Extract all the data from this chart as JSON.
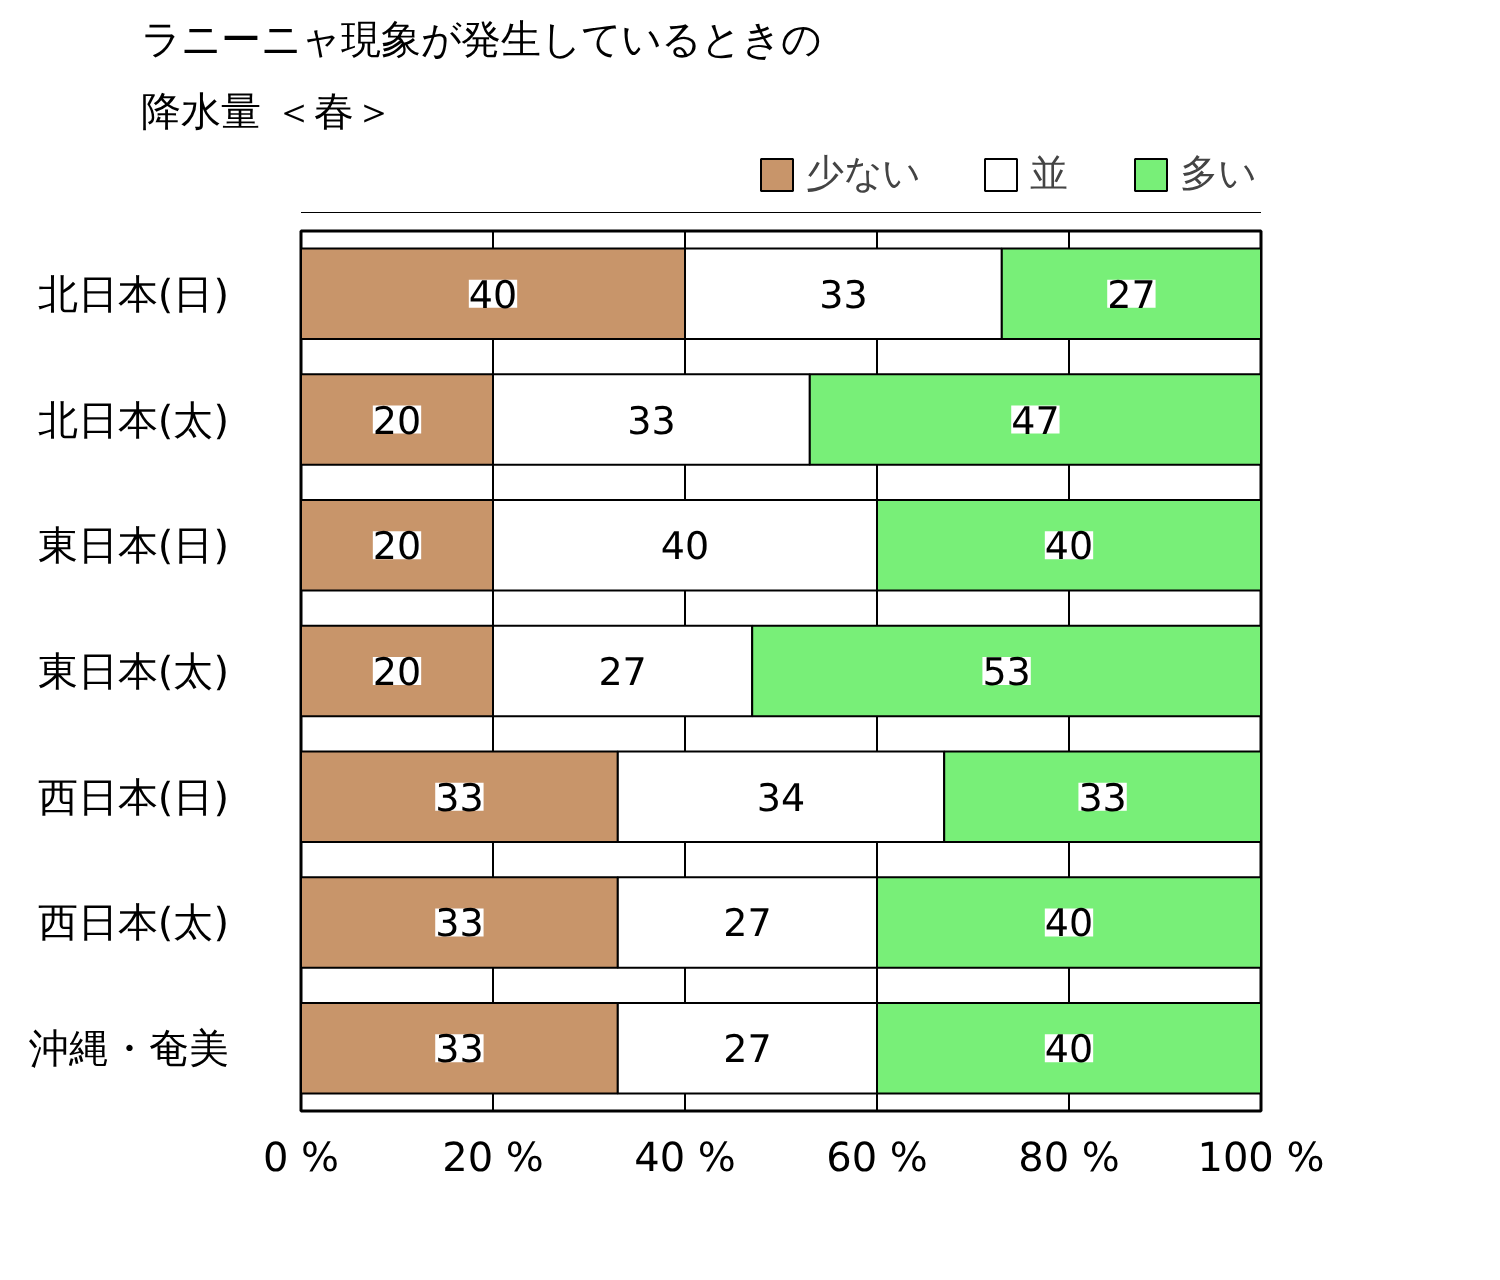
{
  "chart_data": {
    "type": "bar",
    "orientation": "horizontal",
    "stacked": true,
    "title": "ラニーニャ現象が発生しているときの",
    "subtitle": "降水量 ＜春＞",
    "categories": [
      "北日本(日)",
      "北日本(太)",
      "東日本(日)",
      "東日本(太)",
      "西日本(日)",
      "西日本(太)",
      "沖縄・奄美"
    ],
    "series": [
      {
        "name": "少ない",
        "color": "#c8956a",
        "values": [
          40,
          20,
          20,
          20,
          33,
          33,
          33
        ]
      },
      {
        "name": "並",
        "color": "#ffffff",
        "values": [
          33,
          33,
          40,
          27,
          34,
          27,
          27
        ]
      },
      {
        "name": "多い",
        "color": "#78ef78",
        "values": [
          27,
          47,
          40,
          53,
          33,
          40,
          40
        ]
      }
    ],
    "xlim": [
      0,
      100
    ],
    "xticks": [
      {
        "value": 0,
        "label": "0 %"
      },
      {
        "value": 20,
        "label": "20 %"
      },
      {
        "value": 40,
        "label": "40 %"
      },
      {
        "value": 60,
        "label": "60 %"
      },
      {
        "value": 80,
        "label": "80 %"
      },
      {
        "value": 100,
        "label": "100 %"
      }
    ],
    "grid": "x",
    "legend": "top right",
    "data_labels": true
  }
}
